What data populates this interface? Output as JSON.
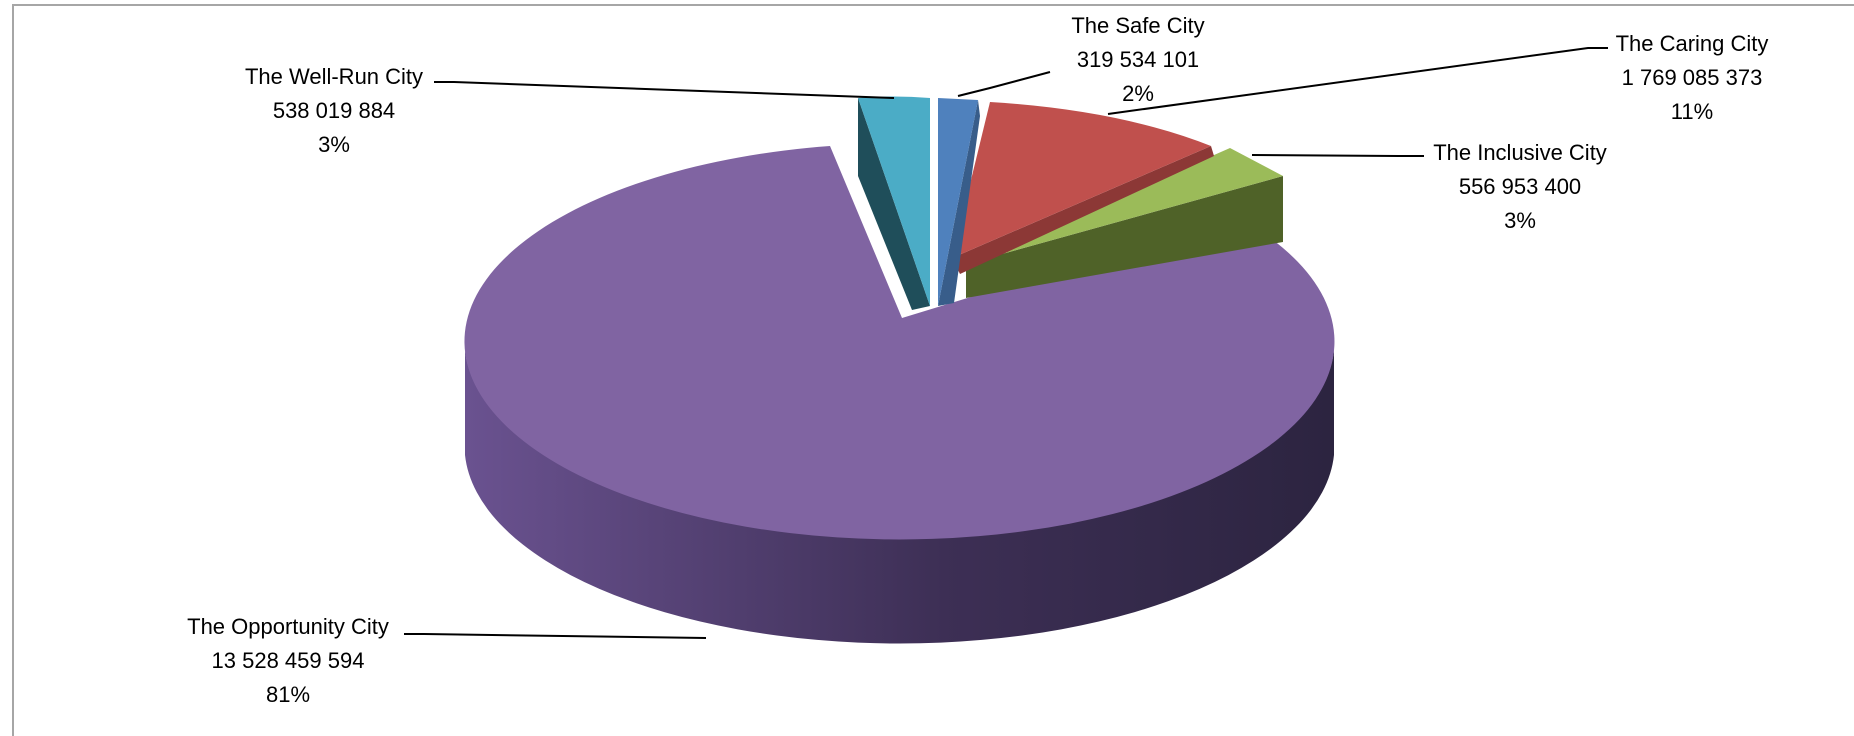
{
  "chart_data": {
    "type": "pie",
    "variant": "3d-exploded",
    "title": "",
    "legend": "none",
    "slices": [
      {
        "name": "The Safe City",
        "value": 319534101,
        "value_label": "319 534 101",
        "percent_label": "2%",
        "color": "#4f81bd",
        "side_color": "#385d8a"
      },
      {
        "name": "The Caring City",
        "value": 1769085373,
        "value_label": "1 769 085 373",
        "percent_label": "11%",
        "color": "#c0504d",
        "side_color": "#8c3836"
      },
      {
        "name": "The Inclusive City",
        "value": 556953400,
        "value_label": "556 953 400",
        "percent_label": "3%",
        "color": "#9bbb59",
        "side_color": "#4f6228"
      },
      {
        "name": "The Opportunity City",
        "value": 13528459594,
        "value_label": "13 528 459 594",
        "percent_label": "81%",
        "color": "#8064a2",
        "side_color": "#3f3151"
      },
      {
        "name": "The Well-Run City",
        "value": 538019884,
        "value_label": "538 019 884",
        "percent_label": "3%",
        "color": "#4bacc6",
        "side_color": "#1f4e5a"
      }
    ]
  }
}
